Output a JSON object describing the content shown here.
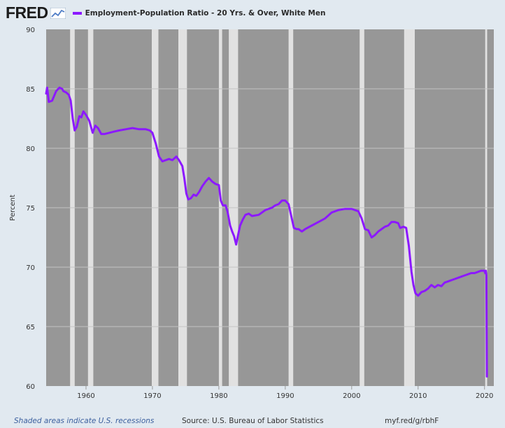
{
  "logo": {
    "text": "FRED",
    "icon": "chart-line-icon"
  },
  "footer": {
    "recession_note": "Shaded areas indicate U.S. recessions",
    "source": "Source: U.S. Bureau of Labor Statistics",
    "link": "myf.red/g/rbhF"
  },
  "colors": {
    "series": "#8c19ff",
    "plot_background": "#979797",
    "recession_shade": "#e1e1e1",
    "page_background": "#e1e9f0",
    "grid": "#c3c3c3"
  },
  "chart_data": {
    "type": "line",
    "title": "",
    "xlabel": "",
    "ylabel": "Percent",
    "xlim": [
      1954.0,
      2021.4
    ],
    "ylim": [
      60,
      90
    ],
    "yticks": [
      60,
      65,
      70,
      75,
      80,
      85,
      90
    ],
    "xticks": [
      1960,
      1970,
      1980,
      1990,
      2000,
      2010,
      2020
    ],
    "grid": true,
    "legend_position": "top-left",
    "recessions": [
      [
        1957.6,
        1958.3
      ],
      [
        1960.3,
        1961.1
      ],
      [
        1969.9,
        1970.9
      ],
      [
        1973.9,
        1975.2
      ],
      [
        1980.0,
        1980.5
      ],
      [
        1981.5,
        1982.9
      ],
      [
        1990.5,
        1991.2
      ],
      [
        2001.2,
        2001.9
      ],
      [
        2007.9,
        2009.5
      ],
      [
        2020.1,
        2020.4
      ]
    ],
    "series": [
      {
        "name": "Employment-Population Ratio - 20 Yrs. & Over, White Men",
        "x": [
          1954.0,
          1954.15,
          1954.4,
          1954.9,
          1955.5,
          1956.0,
          1956.4,
          1956.6,
          1957.0,
          1957.4,
          1957.7,
          1958.0,
          1958.3,
          1958.6,
          1959.0,
          1959.3,
          1959.6,
          1960.0,
          1960.5,
          1961.0,
          1961.4,
          1961.8,
          1962.3,
          1962.8,
          1963.5,
          1964.2,
          1965.0,
          1966.0,
          1967.0,
          1968.0,
          1969.0,
          1969.6,
          1970.0,
          1970.5,
          1971.0,
          1971.5,
          1972.0,
          1972.5,
          1973.0,
          1973.6,
          1974.0,
          1974.5,
          1974.8,
          1975.1,
          1975.4,
          1975.8,
          1976.2,
          1976.6,
          1977.0,
          1977.5,
          1978.0,
          1978.5,
          1979.0,
          1979.5,
          1980.0,
          1980.3,
          1980.6,
          1981.0,
          1981.3,
          1981.7,
          1982.0,
          1982.3,
          1982.6,
          1982.9,
          1983.2,
          1983.6,
          1984.0,
          1984.5,
          1985.0,
          1986.0,
          1987.0,
          1987.5,
          1988.0,
          1988.5,
          1989.0,
          1989.5,
          1990.0,
          1990.5,
          1990.9,
          1991.3,
          1991.7,
          1992.0,
          1992.5,
          1993.0,
          1994.0,
          1995.0,
          1996.0,
          1997.0,
          1998.0,
          1999.0,
          2000.0,
          2000.5,
          2001.0,
          2001.5,
          2002.0,
          2002.5,
          2003.0,
          2003.5,
          2004.0,
          2004.5,
          2005.0,
          2005.5,
          2006.0,
          2006.5,
          2007.0,
          2007.3,
          2007.8,
          2008.2,
          2008.6,
          2009.0,
          2009.3,
          2009.6,
          2010.0,
          2010.5,
          2011.0,
          2011.5,
          2012.0,
          2012.5,
          2013.0,
          2013.5,
          2014.0,
          2014.5,
          2015.0,
          2015.5,
          2016.0,
          2016.5,
          2017.0,
          2017.5,
          2018.0,
          2018.5,
          2019.0,
          2019.5,
          2020.0,
          2020.1,
          2020.2,
          2020.28,
          2020.36
        ],
        "values": [
          84.6,
          85.1,
          83.9,
          84.0,
          84.8,
          85.1,
          85.0,
          84.8,
          84.7,
          84.5,
          84.0,
          82.5,
          81.5,
          81.8,
          82.7,
          82.6,
          83.1,
          82.8,
          82.3,
          81.3,
          81.9,
          81.7,
          81.2,
          81.2,
          81.3,
          81.4,
          81.5,
          81.6,
          81.7,
          81.6,
          81.6,
          81.5,
          81.3,
          80.4,
          79.3,
          78.9,
          79.0,
          79.1,
          79.0,
          79.3,
          79.0,
          78.5,
          77.5,
          76.2,
          75.7,
          75.8,
          76.1,
          76.0,
          76.3,
          76.8,
          77.2,
          77.5,
          77.2,
          77.0,
          76.9,
          75.6,
          75.2,
          75.2,
          74.7,
          73.5,
          73.0,
          72.6,
          71.9,
          72.7,
          73.5,
          74.0,
          74.4,
          74.5,
          74.3,
          74.4,
          74.8,
          74.9,
          75.0,
          75.2,
          75.3,
          75.6,
          75.6,
          75.3,
          74.3,
          73.3,
          73.2,
          73.2,
          73.0,
          73.2,
          73.5,
          73.8,
          74.1,
          74.6,
          74.8,
          74.9,
          74.9,
          74.8,
          74.7,
          74.1,
          73.2,
          73.1,
          72.5,
          72.7,
          73.0,
          73.2,
          73.4,
          73.5,
          73.8,
          73.8,
          73.7,
          73.3,
          73.4,
          73.3,
          71.8,
          69.6,
          68.5,
          67.8,
          67.6,
          67.9,
          68.0,
          68.2,
          68.5,
          68.3,
          68.5,
          68.4,
          68.7,
          68.8,
          68.9,
          69.0,
          69.1,
          69.2,
          69.3,
          69.4,
          69.5,
          69.5,
          69.6,
          69.7,
          69.7,
          69.5,
          69.7,
          69.3,
          60.8
        ]
      }
    ]
  }
}
